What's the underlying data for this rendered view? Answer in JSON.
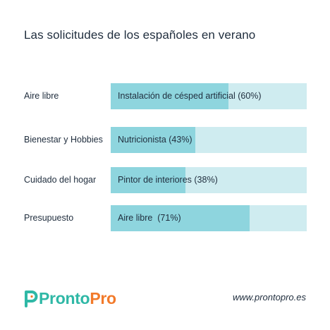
{
  "chart_data": {
    "type": "bar",
    "title": "Las solicitudes de los españoles en verano",
    "categories": [
      "Aire libre",
      "Bienestar y Hobbies",
      "Cuidado del hogar",
      "Presupuesto"
    ],
    "bar_labels": [
      "Instalación de césped artificial (60%)",
      "Nutricionista (43%)",
      "Pintor de interiores (38%)",
      "Aire libre  (71%)"
    ],
    "values": [
      60,
      43,
      38,
      71
    ],
    "ylim": [
      0,
      100
    ],
    "colors": {
      "fill": "#8ed5de",
      "track": "#cfecf0"
    }
  },
  "footer": {
    "brand_part1": "Pronto",
    "brand_part2": "Pro",
    "website": "www.prontopro.es"
  }
}
